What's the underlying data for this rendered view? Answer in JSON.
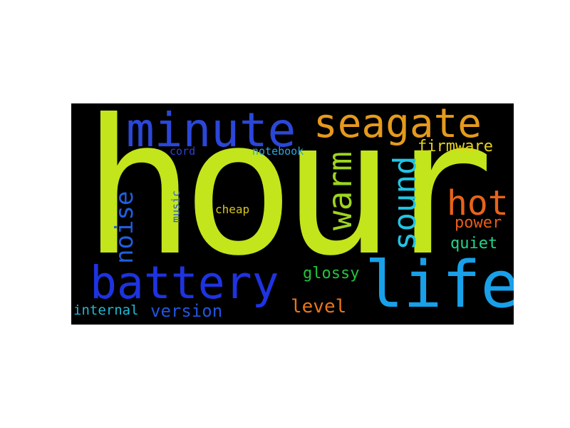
{
  "word_cloud": {
    "background_color": "#000000",
    "words": {
      "hour": {
        "text": "hour",
        "color": "#c3e51b"
      },
      "minute": {
        "text": "minute",
        "color": "#2b47d8"
      },
      "seagate": {
        "text": "seagate",
        "color": "#e59a1c"
      },
      "battery": {
        "text": "battery",
        "color": "#1e33e0"
      },
      "life": {
        "text": "life",
        "color": "#18a0e8"
      },
      "hot": {
        "text": "hot",
        "color": "#e8631a"
      },
      "warm": {
        "text": "warm",
        "color": "#9fd41e"
      },
      "sound": {
        "text": "sound",
        "color": "#22c4e4"
      },
      "noise": {
        "text": "noise",
        "color": "#1f5ee0"
      },
      "firmware": {
        "text": "firmware",
        "color": "#e6d21c"
      },
      "power": {
        "text": "power",
        "color": "#e85d18"
      },
      "quiet": {
        "text": "quiet",
        "color": "#22d48c"
      },
      "glossy": {
        "text": "glossy",
        "color": "#22c43c"
      },
      "level": {
        "text": "level",
        "color": "#e8761a"
      },
      "version": {
        "text": "version",
        "color": "#2254de"
      },
      "internal": {
        "text": "internal",
        "color": "#22b8d4"
      },
      "cord": {
        "text": "cord",
        "color": "#2e3fd6"
      },
      "notebook": {
        "text": "notebook",
        "color": "#2aa6e0"
      },
      "music": {
        "text": "music",
        "color": "#2d5ccc"
      },
      "cheap": {
        "text": "cheap",
        "color": "#d8c620"
      }
    }
  }
}
